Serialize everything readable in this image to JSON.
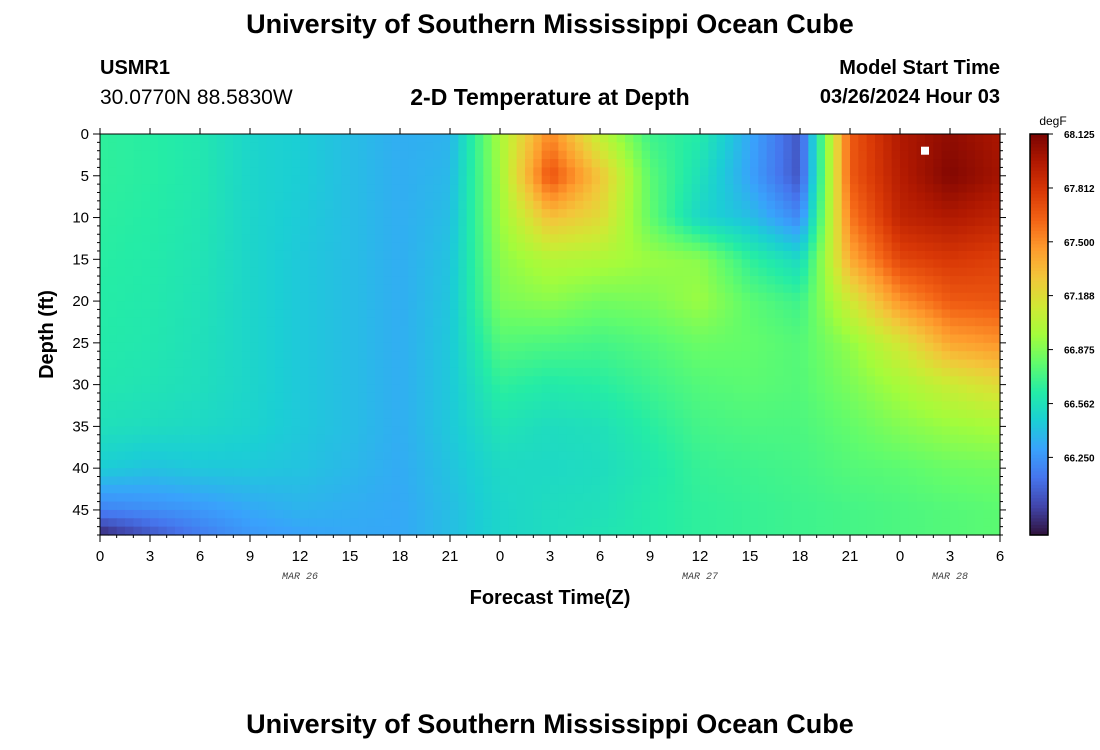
{
  "header": {
    "title": "University of Southern Mississippi Ocean Cube",
    "station_id": "USMR1",
    "station_coords": "30.0770N  88.5830W",
    "subtitle": "2-D Temperature at Depth",
    "start_label": "Model Start Time",
    "start_value": "03/26/2024 Hour 03"
  },
  "footer": {
    "title": "University of Southern Mississippi Ocean Cube"
  },
  "colors": {
    "background": "#ffffff",
    "marker": "#ffffff",
    "colormap": [
      "#30123b",
      "#4145ab",
      "#4675ed",
      "#39a2fc",
      "#1bcfd4",
      "#24eca6",
      "#61fc6c",
      "#a4fc3b",
      "#d1e834",
      "#f3c63a",
      "#fe9b2d",
      "#f36315",
      "#d93806",
      "#b11901",
      "#7a0402"
    ]
  },
  "chart_data": {
    "type": "heatmap",
    "xlabel": "Forecast Time(Z)",
    "ylabel": "Depth (ft)",
    "x_unit": "hours",
    "xlim": [
      0,
      54
    ],
    "x_ticks": [
      0,
      3,
      6,
      9,
      12,
      15,
      18,
      21,
      24,
      27,
      30,
      33,
      36,
      39,
      42,
      45,
      48,
      51,
      54
    ],
    "x_tick_labels": [
      "0",
      "3",
      "6",
      "9",
      "12",
      "15",
      "18",
      "21",
      "0",
      "3",
      "6",
      "9",
      "12",
      "15",
      "18",
      "21",
      "0",
      "3",
      "6"
    ],
    "date_labels": [
      {
        "x": 12,
        "text": "MAR 26"
      },
      {
        "x": 36,
        "text": "MAR 27"
      },
      {
        "x": 51,
        "text": "MAR 28"
      }
    ],
    "ylim": [
      0,
      48
    ],
    "y_inverted": true,
    "y_ticks": [
      0,
      5,
      10,
      15,
      20,
      25,
      30,
      35,
      40,
      45
    ],
    "colorbar": {
      "unit": "degF",
      "min": 65.8,
      "max": 68.125,
      "tick_values": [
        68.125,
        67.812,
        67.5,
        67.188,
        66.875,
        66.562,
        66.25
      ],
      "tick_labels": [
        "68.125",
        "67.812",
        "67.500",
        "67.188",
        "66.875",
        "66.562",
        "66.250"
      ]
    },
    "field_times": [
      0,
      3,
      6,
      9,
      12,
      15,
      18,
      21,
      24,
      27,
      30,
      33,
      36,
      39,
      42,
      45,
      48,
      51,
      54
    ],
    "field_depths": [
      0,
      5,
      10,
      15,
      20,
      25,
      30,
      35,
      40,
      45,
      48
    ],
    "values": [
      [
        66.66,
        66.64,
        66.6,
        66.5,
        66.46,
        66.4,
        66.34,
        66.36,
        66.98,
        67.52,
        67.06,
        66.7,
        66.62,
        66.32,
        66.02,
        67.66,
        67.96,
        68.06,
        67.98
      ],
      [
        66.66,
        66.64,
        66.6,
        66.5,
        66.46,
        66.4,
        66.34,
        66.38,
        66.96,
        67.7,
        67.3,
        66.78,
        66.56,
        66.3,
        66.02,
        67.66,
        67.94,
        68.1,
        68.0
      ],
      [
        66.65,
        66.63,
        66.59,
        66.5,
        66.45,
        66.4,
        66.34,
        66.4,
        66.94,
        67.32,
        67.2,
        66.8,
        66.5,
        66.4,
        66.2,
        67.56,
        67.9,
        67.96,
        67.9
      ],
      [
        66.64,
        66.62,
        66.58,
        66.5,
        66.44,
        66.4,
        66.34,
        66.42,
        66.9,
        67.02,
        67.0,
        66.94,
        66.9,
        66.66,
        66.52,
        67.4,
        67.74,
        67.8,
        67.76
      ],
      [
        66.63,
        66.61,
        66.57,
        66.5,
        66.44,
        66.4,
        66.34,
        66.43,
        66.86,
        66.9,
        66.84,
        66.86,
        66.94,
        66.78,
        66.7,
        67.12,
        67.48,
        67.66,
        67.68
      ],
      [
        66.62,
        66.6,
        66.56,
        66.5,
        66.44,
        66.4,
        66.34,
        66.44,
        66.76,
        66.74,
        66.72,
        66.76,
        66.82,
        66.8,
        66.76,
        66.92,
        67.14,
        67.42,
        67.48
      ],
      [
        66.6,
        66.58,
        66.55,
        66.5,
        66.44,
        66.4,
        66.34,
        66.44,
        66.66,
        66.62,
        66.64,
        66.7,
        66.76,
        66.78,
        66.76,
        66.86,
        66.98,
        67.1,
        67.2
      ],
      [
        66.56,
        66.54,
        66.52,
        66.49,
        66.44,
        66.4,
        66.34,
        66.44,
        66.58,
        66.54,
        66.56,
        66.64,
        66.72,
        66.74,
        66.74,
        66.8,
        66.88,
        66.94,
        66.98
      ],
      [
        66.46,
        66.42,
        66.44,
        66.44,
        66.42,
        66.38,
        66.33,
        66.42,
        66.52,
        66.52,
        66.54,
        66.6,
        66.68,
        66.7,
        66.72,
        66.76,
        66.78,
        66.82,
        66.84
      ],
      [
        66.18,
        66.22,
        66.26,
        66.32,
        66.36,
        66.34,
        66.32,
        66.4,
        66.5,
        66.54,
        66.56,
        66.62,
        66.66,
        66.68,
        66.7,
        66.72,
        66.74,
        66.76,
        66.78
      ],
      [
        65.86,
        66.02,
        66.16,
        66.26,
        66.3,
        66.32,
        66.32,
        66.4,
        66.5,
        66.54,
        66.58,
        66.62,
        66.66,
        66.68,
        66.7,
        66.72,
        66.74,
        66.76,
        66.78
      ]
    ],
    "marker": {
      "time": 49.5,
      "depth": 2,
      "shape": "square"
    }
  }
}
